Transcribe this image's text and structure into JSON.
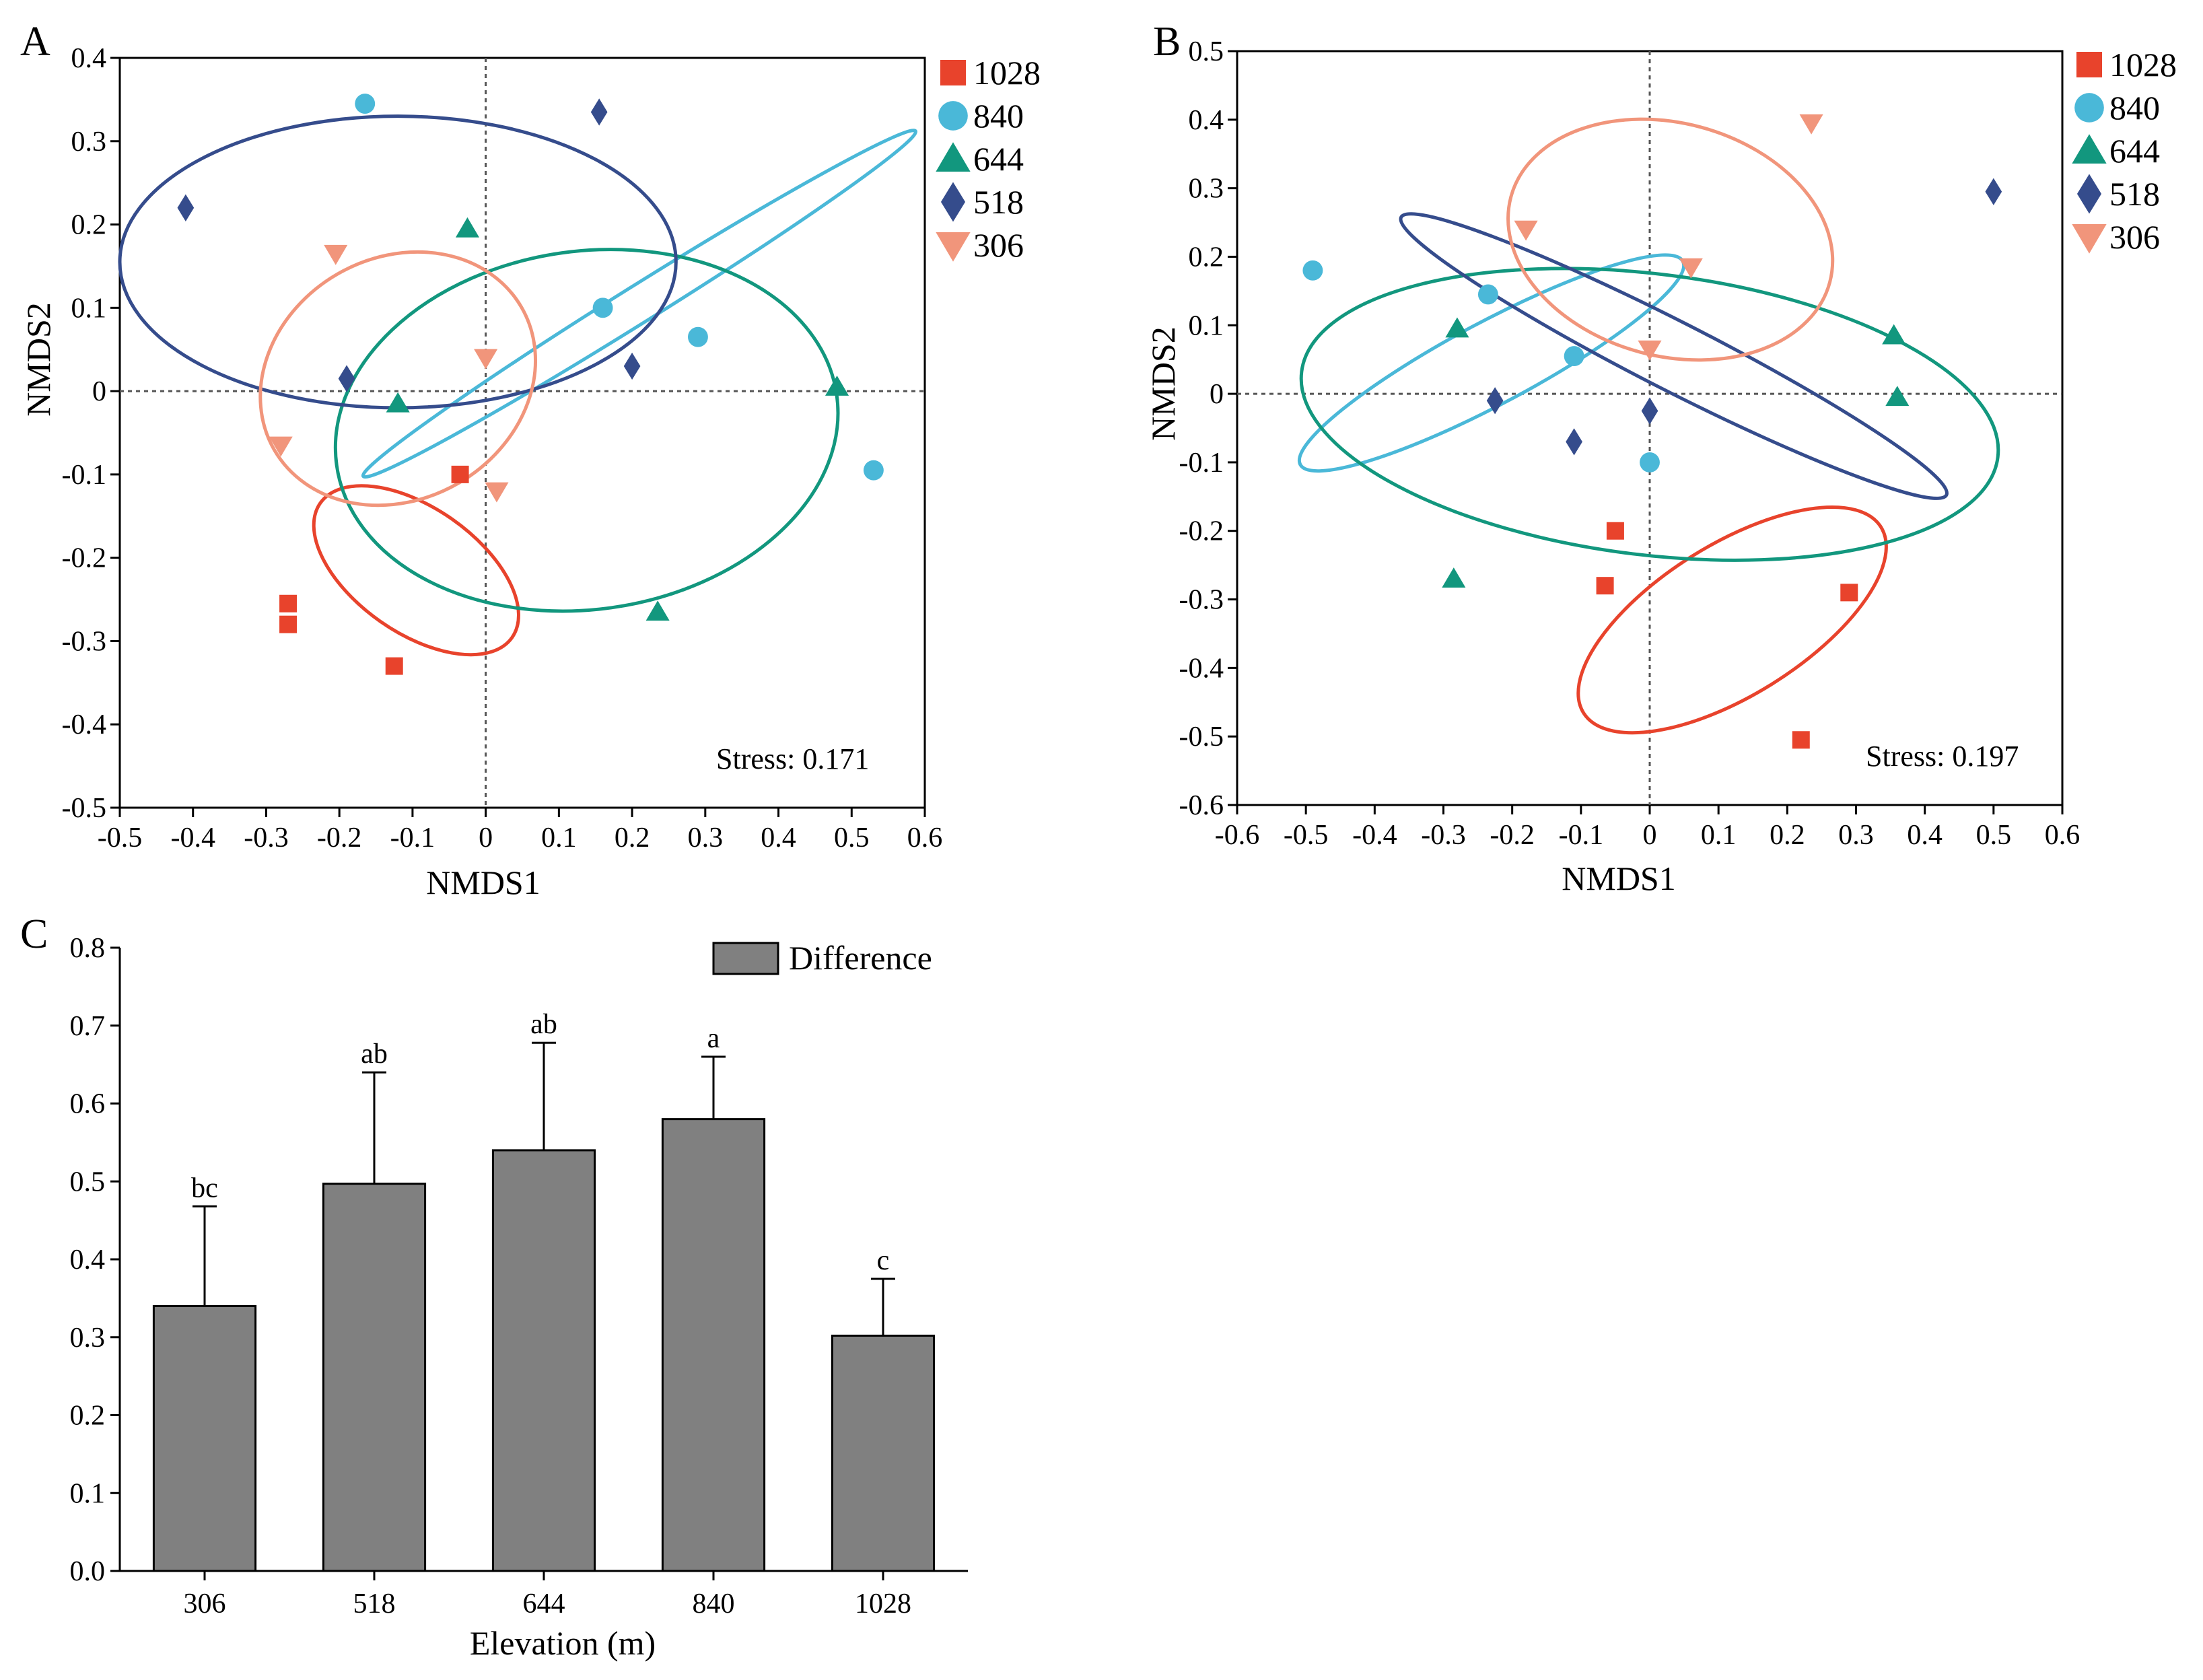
{
  "figure": {
    "panels": [
      "A",
      "B",
      "C"
    ]
  },
  "colors": {
    "1028": "#e8432c",
    "840": "#4ab8d8",
    "644": "#12977e",
    "518": "#354c8c",
    "306": "#f1957b",
    "bar_fill": "#808080"
  },
  "chart_data": [
    {
      "panel": "A",
      "type": "scatter",
      "xlabel": "NMDS1",
      "ylabel": "NMDS2",
      "xlim": [
        -0.5,
        0.6
      ],
      "ylim": [
        -0.5,
        0.4
      ],
      "xticks": [
        -0.5,
        -0.4,
        -0.3,
        -0.2,
        -0.1,
        0,
        0.1,
        0.2,
        0.3,
        0.4,
        0.5,
        0.6
      ],
      "yticks": [
        -0.5,
        -0.4,
        -0.3,
        -0.2,
        -0.1,
        0,
        0.1,
        0.2,
        0.3,
        0.4
      ],
      "xtick_labels": [
        "-0.5",
        "-0.4",
        "-0.3",
        "-0.2",
        "-0.1",
        "0",
        "0.1",
        "0.2",
        "0.3",
        "0.4",
        "0.5",
        "0.6"
      ],
      "ytick_labels": [
        "-0.5",
        "-0.4",
        "-0.3",
        "-0.2",
        "-0.1",
        "0",
        "0.1",
        "0.2",
        "0.3",
        "0.4"
      ],
      "annotation": "Stress: 0.171",
      "legend_position": "outside-top-right",
      "series": [
        {
          "name": "1028",
          "marker": "square",
          "points": [
            [
              -0.27,
              -0.255
            ],
            [
              -0.27,
              -0.28
            ],
            [
              -0.125,
              -0.33
            ],
            [
              -0.035,
              -0.1
            ]
          ],
          "ellipse": {
            "cx": -0.095,
            "cy": -0.215,
            "rx": 0.16,
            "ry": 0.075,
            "angle_deg": 35
          }
        },
        {
          "name": "840",
          "marker": "circle",
          "points": [
            [
              -0.165,
              0.345
            ],
            [
              0.16,
              0.1
            ],
            [
              0.29,
              0.065
            ],
            [
              0.53,
              -0.095
            ]
          ],
          "ellipse": {
            "cx": 0.21,
            "cy": 0.105,
            "rx": 0.445,
            "ry": 0.022,
            "angle_deg": -32
          }
        },
        {
          "name": "644",
          "marker": "triangle-up",
          "points": [
            [
              -0.025,
              0.195
            ],
            [
              0.48,
              0.005
            ],
            [
              -0.12,
              -0.015
            ],
            [
              0.235,
              -0.265
            ]
          ],
          "ellipse": {
            "cx": 0.138,
            "cy": -0.047,
            "rx": 0.345,
            "ry": 0.215,
            "angle_deg": -8
          }
        },
        {
          "name": "518",
          "marker": "diamond",
          "points": [
            [
              -0.41,
              0.22
            ],
            [
              0.155,
              0.335
            ],
            [
              -0.19,
              0.015
            ],
            [
              0.2,
              0.03
            ]
          ],
          "ellipse": {
            "cx": -0.12,
            "cy": 0.155,
            "rx": 0.38,
            "ry": 0.175,
            "angle_deg": 0
          }
        },
        {
          "name": "306",
          "marker": "triangle-down",
          "points": [
            [
              -0.205,
              0.165
            ],
            [
              -0.28,
              -0.065
            ],
            [
              0,
              0.04
            ],
            [
              0.015,
              -0.12
            ]
          ],
          "ellipse": {
            "cx": -0.12,
            "cy": 0.015,
            "rx": 0.195,
            "ry": 0.145,
            "angle_deg": -30
          }
        }
      ]
    },
    {
      "panel": "B",
      "type": "scatter",
      "xlabel": "NMDS1",
      "ylabel": "NMDS2",
      "xlim": [
        -0.6,
        0.6
      ],
      "ylim": [
        -0.6,
        0.5
      ],
      "xticks": [
        -0.6,
        -0.5,
        -0.4,
        -0.3,
        -0.2,
        -0.1,
        0,
        0.1,
        0.2,
        0.3,
        0.4,
        0.5,
        0.6
      ],
      "yticks": [
        -0.6,
        -0.5,
        -0.4,
        -0.3,
        -0.2,
        -0.1,
        0,
        0.1,
        0.2,
        0.3,
        0.4,
        0.5
      ],
      "xtick_labels": [
        "-0.6",
        "-0.5",
        "-0.4",
        "-0.3",
        "-0.2",
        "-0.1",
        "0",
        "0.1",
        "0.2",
        "0.3",
        "0.4",
        "0.5",
        "0.6"
      ],
      "ytick_labels": [
        "-0.6",
        "-0.5",
        "-0.4",
        "-0.3",
        "-0.2",
        "-0.1",
        "0",
        "0.1",
        "0.2",
        "0.3",
        "0.4",
        "0.5"
      ],
      "annotation": "Stress: 0.197",
      "legend_position": "outside-top-right",
      "series": [
        {
          "name": "1028",
          "marker": "square",
          "points": [
            [
              -0.05,
              -0.2
            ],
            [
              -0.065,
              -0.28
            ],
            [
              0.29,
              -0.29
            ],
            [
              0.22,
              -0.505
            ]
          ],
          "ellipse": {
            "cx": 0.12,
            "cy": -0.33,
            "rx": 0.255,
            "ry": 0.11,
            "angle_deg": -32
          }
        },
        {
          "name": "840",
          "marker": "circle",
          "points": [
            [
              -0.49,
              0.18
            ],
            [
              -0.235,
              0.145
            ],
            [
              -0.11,
              0.055
            ],
            [
              0,
              -0.1
            ]
          ],
          "ellipse": {
            "cx": -0.23,
            "cy": 0.045,
            "rx": 0.315,
            "ry": 0.06,
            "angle_deg": -28
          }
        },
        {
          "name": "644",
          "marker": "triangle-up",
          "points": [
            [
              -0.28,
              0.095
            ],
            [
              0.355,
              0.085
            ],
            [
              0.36,
              -0.005
            ],
            [
              -0.285,
              -0.27
            ]
          ],
          "ellipse": {
            "cx": 0.0,
            "cy": -0.03,
            "rx": 0.51,
            "ry": 0.205,
            "angle_deg": 7
          }
        },
        {
          "name": "518",
          "marker": "diamond",
          "points": [
            [
              -0.225,
              -0.01
            ],
            [
              -0.11,
              -0.07
            ],
            [
              0,
              -0.025
            ],
            [
              0.5,
              0.295
            ]
          ],
          "ellipse": {
            "cx": 0.035,
            "cy": 0.055,
            "rx": 0.445,
            "ry": 0.05,
            "angle_deg": 27
          }
        },
        {
          "name": "306",
          "marker": "triangle-down",
          "points": [
            [
              -0.18,
              0.24
            ],
            [
              0.06,
              0.185
            ],
            [
              0.235,
              0.395
            ],
            [
              0,
              0.065
            ]
          ],
          "ellipse": {
            "cx": 0.03,
            "cy": 0.225,
            "rx": 0.24,
            "ry": 0.17,
            "angle_deg": 15
          }
        }
      ]
    },
    {
      "panel": "C",
      "type": "bar",
      "xlabel": "Elevation (m)",
      "ylabel": "",
      "ylim": [
        0,
        0.8
      ],
      "yticks": [
        0,
        0.1,
        0.2,
        0.3,
        0.4,
        0.5,
        0.6,
        0.7,
        0.8
      ],
      "ytick_labels": [
        "0.0",
        "0.1",
        "0.2",
        "0.3",
        "0.4",
        "0.5",
        "0.6",
        "0.7",
        "0.8"
      ],
      "categories": [
        "306",
        "518",
        "644",
        "840",
        "1028"
      ],
      "series": [
        {
          "name": "Difference",
          "values": [
            0.34,
            0.497,
            0.54,
            0.58,
            0.302
          ]
        }
      ],
      "errors": [
        0.128,
        0.143,
        0.138,
        0.08,
        0.073
      ],
      "letters": [
        "bc",
        "ab",
        "ab",
        "a",
        "c"
      ],
      "legend_position": "top-right"
    }
  ]
}
